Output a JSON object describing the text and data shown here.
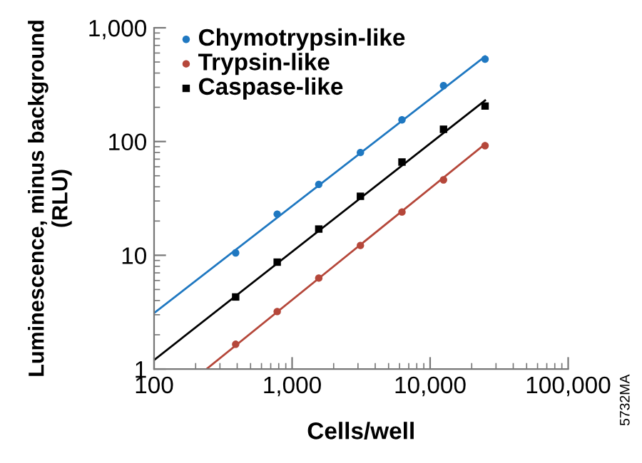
{
  "chart_data": {
    "type": "scatter",
    "xlabel": "Cells/well",
    "ylabel": "Luminescence, minus background\n(RLU)",
    "log": "xy",
    "grid": false,
    "legend": "top left",
    "xlim": [
      100,
      100000
    ],
    "ylim": [
      1,
      1000
    ],
    "xticks": [
      100,
      {
        "value": 1000,
        "label": "1,000"
      },
      {
        "value": 10000,
        "label": "10,000"
      },
      {
        "value": 100000,
        "label": "100,000"
      }
    ],
    "yticks": [
      1,
      10,
      100,
      {
        "value": 1000,
        "label": "1,000"
      }
    ],
    "annotations": [
      "5732MA"
    ],
    "series": [
      {
        "name": "Chymotrypsin-like",
        "marker": "circle",
        "color": "#1f78c1",
        "x": [
          390,
          780,
          1560,
          3125,
          6250,
          12500,
          25000
        ],
        "values": [
          10.5,
          23,
          42,
          80,
          155,
          310,
          530
        ]
      },
      {
        "name": "Trypsin-like",
        "marker": "circle",
        "color": "#b5473a",
        "x": [
          390,
          780,
          1560,
          3125,
          6250,
          12500,
          25000
        ],
        "values": [
          1.65,
          3.2,
          6.3,
          12.2,
          24,
          46,
          92
        ]
      },
      {
        "name": "Caspase-like",
        "marker": "square",
        "color": "#000000",
        "x": [
          390,
          780,
          1560,
          3125,
          6250,
          12500,
          25000
        ],
        "values": [
          4.3,
          8.7,
          17,
          33,
          66,
          128,
          205
        ]
      },
      {
        "type": "line",
        "color": "#1f78c1",
        "x": [
          100,
          25000
        ],
        "values": [
          3.1,
          560
        ]
      },
      {
        "type": "line",
        "color": "#b5473a",
        "x": [
          240,
          25000
        ],
        "values": [
          1,
          95
        ]
      },
      {
        "type": "line",
        "color": "#000000",
        "x": [
          100,
          25000
        ],
        "values": [
          1.2,
          230
        ]
      }
    ]
  }
}
